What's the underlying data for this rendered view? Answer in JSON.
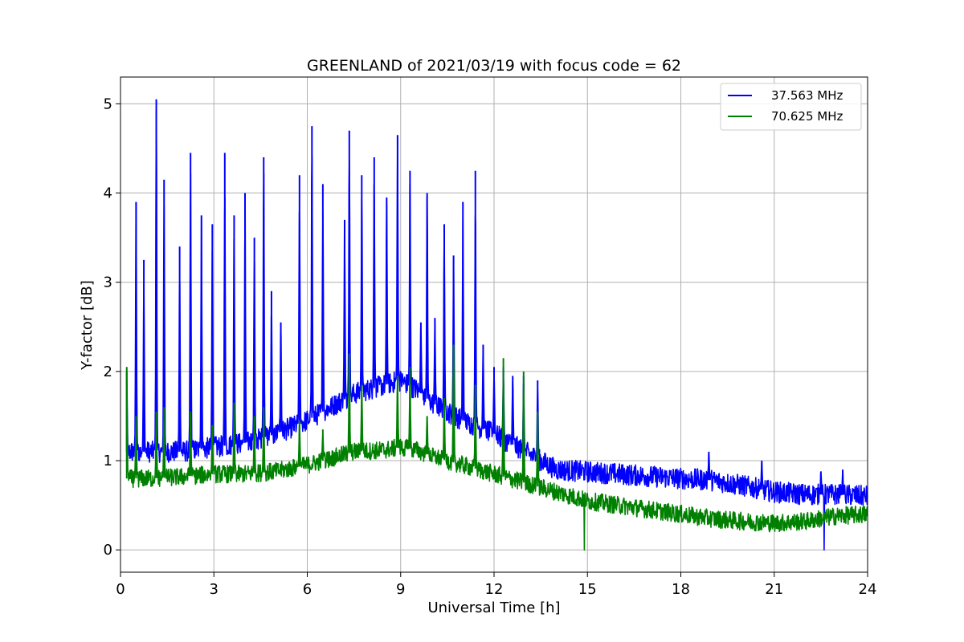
{
  "chart_data": {
    "type": "line",
    "title": "GREENLAND of 2021/03/19 with focus code = 62",
    "xlabel": "Universal Time [h]",
    "ylabel": "Y-factor [dB]",
    "xlim": [
      0,
      24
    ],
    "ylim": [
      -0.25,
      5.3
    ],
    "xticks": [
      0,
      3,
      6,
      9,
      12,
      15,
      18,
      21,
      24
    ],
    "yticks": [
      0,
      1,
      2,
      3,
      4,
      5
    ],
    "grid": true,
    "legend_position": "top-right",
    "series": [
      {
        "name": "37.563 MHz",
        "color": "#0000ff",
        "baseline": [
          [
            0.2,
            1.1
          ],
          [
            1,
            1.1
          ],
          [
            2,
            1.1
          ],
          [
            3,
            1.15
          ],
          [
            4,
            1.2
          ],
          [
            5,
            1.3
          ],
          [
            6,
            1.45
          ],
          [
            7,
            1.65
          ],
          [
            7.5,
            1.75
          ],
          [
            8.5,
            1.85
          ],
          [
            9,
            1.9
          ],
          [
            9.5,
            1.8
          ],
          [
            10,
            1.65
          ],
          [
            11,
            1.45
          ],
          [
            12,
            1.3
          ],
          [
            13,
            1.1
          ],
          [
            13.5,
            1.0
          ],
          [
            14,
            0.9
          ],
          [
            16,
            0.85
          ],
          [
            18,
            0.8
          ],
          [
            19,
            0.78
          ],
          [
            20,
            0.72
          ],
          [
            21,
            0.65
          ],
          [
            22,
            0.62
          ],
          [
            23,
            0.62
          ],
          [
            24,
            0.6
          ]
        ],
        "noise_amplitude": 0.12,
        "peaks": [
          [
            0.2,
            2.0
          ],
          [
            0.5,
            3.9
          ],
          [
            0.75,
            3.25
          ],
          [
            1.15,
            5.05
          ],
          [
            1.4,
            4.15
          ],
          [
            1.9,
            3.4
          ],
          [
            2.25,
            4.45
          ],
          [
            2.6,
            3.75
          ],
          [
            2.95,
            3.65
          ],
          [
            3.35,
            4.45
          ],
          [
            3.65,
            3.75
          ],
          [
            4.0,
            4.0
          ],
          [
            4.3,
            3.5
          ],
          [
            4.6,
            4.4
          ],
          [
            4.85,
            2.9
          ],
          [
            5.15,
            2.55
          ],
          [
            5.75,
            4.2
          ],
          [
            6.15,
            4.75
          ],
          [
            6.5,
            4.1
          ],
          [
            7.2,
            3.7
          ],
          [
            7.35,
            4.7
          ],
          [
            7.75,
            4.2
          ],
          [
            8.15,
            4.4
          ],
          [
            8.55,
            3.95
          ],
          [
            8.9,
            4.65
          ],
          [
            9.3,
            4.25
          ],
          [
            9.65,
            2.55
          ],
          [
            9.85,
            4.0
          ],
          [
            10.1,
            2.6
          ],
          [
            10.4,
            3.65
          ],
          [
            10.7,
            3.3
          ],
          [
            11.0,
            3.9
          ],
          [
            11.4,
            4.25
          ],
          [
            11.65,
            2.3
          ],
          [
            12.0,
            2.05
          ],
          [
            12.3,
            2.05
          ],
          [
            12.6,
            1.95
          ],
          [
            12.95,
            1.95
          ],
          [
            13.4,
            1.9
          ],
          [
            18.9,
            1.1
          ],
          [
            20.6,
            1.0
          ],
          [
            22.5,
            0.88
          ],
          [
            23.2,
            0.9
          ]
        ],
        "dips": [
          [
            22.6,
            0.0
          ]
        ]
      },
      {
        "name": "70.625 MHz",
        "color": "#008000",
        "baseline": [
          [
            0.2,
            0.8
          ],
          [
            1,
            0.8
          ],
          [
            2,
            0.82
          ],
          [
            3,
            0.85
          ],
          [
            4,
            0.85
          ],
          [
            5,
            0.88
          ],
          [
            6,
            0.95
          ],
          [
            7,
            1.05
          ],
          [
            7.5,
            1.1
          ],
          [
            8.5,
            1.12
          ],
          [
            9,
            1.15
          ],
          [
            9.5,
            1.12
          ],
          [
            10,
            1.05
          ],
          [
            11,
            0.95
          ],
          [
            12,
            0.85
          ],
          [
            13,
            0.75
          ],
          [
            14,
            0.65
          ],
          [
            15,
            0.55
          ],
          [
            16,
            0.5
          ],
          [
            17,
            0.45
          ],
          [
            18,
            0.4
          ],
          [
            19,
            0.35
          ],
          [
            20,
            0.32
          ],
          [
            21,
            0.3
          ],
          [
            22,
            0.32
          ],
          [
            23,
            0.38
          ],
          [
            24,
            0.4
          ]
        ],
        "noise_amplitude": 0.1,
        "peaks": [
          [
            0.2,
            2.05
          ],
          [
            0.5,
            1.5
          ],
          [
            1.15,
            1.55
          ],
          [
            1.4,
            1.6
          ],
          [
            2.25,
            1.55
          ],
          [
            2.95,
            1.4
          ],
          [
            3.65,
            1.65
          ],
          [
            4.3,
            1.5
          ],
          [
            4.6,
            1.6
          ],
          [
            5.75,
            1.45
          ],
          [
            6.5,
            1.35
          ],
          [
            7.35,
            2.2
          ],
          [
            7.75,
            1.85
          ],
          [
            8.9,
            1.95
          ],
          [
            9.3,
            2.05
          ],
          [
            9.85,
            1.5
          ],
          [
            10.4,
            1.7
          ],
          [
            10.7,
            2.3
          ],
          [
            11.4,
            1.85
          ],
          [
            12.3,
            2.15
          ],
          [
            12.95,
            2.0
          ],
          [
            13.4,
            1.55
          ]
        ],
        "dips": [
          [
            14.9,
            0.0
          ]
        ]
      }
    ]
  }
}
